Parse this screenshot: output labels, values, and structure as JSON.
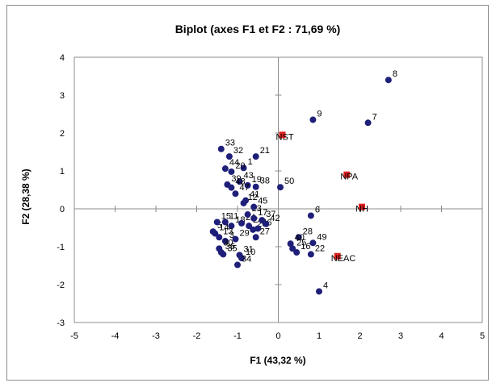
{
  "chart_data": {
    "type": "scatter",
    "title": "Biplot (axes F1 et F2 : 71,69 %)",
    "xlabel": "F1 (43,32 %)",
    "ylabel": "F2 (28,38 %)",
    "xlim": [
      -5,
      5
    ],
    "ylim": [
      -3,
      4
    ],
    "xticks": [
      -5,
      -4,
      -3,
      -2,
      -1,
      0,
      1,
      2,
      3,
      4,
      5
    ],
    "yticks": [
      -3,
      -2,
      -1,
      0,
      1,
      2,
      3,
      4
    ],
    "colors": {
      "observations": "#1f1f7a",
      "variables": "#e02020"
    },
    "variables": [
      {
        "label": "NST",
        "x": 0.1,
        "y": 1.95
      },
      {
        "label": "NPA",
        "x": 1.68,
        "y": 0.9
      },
      {
        "label": "NH",
        "x": 2.05,
        "y": 0.05
      },
      {
        "label": "NEAC",
        "x": 1.45,
        "y": -1.25
      }
    ],
    "observations": [
      {
        "label": "8",
        "x": 2.7,
        "y": 3.4
      },
      {
        "label": "7",
        "x": 2.2,
        "y": 2.27
      },
      {
        "label": "9",
        "x": 0.85,
        "y": 2.35
      },
      {
        "label": "50",
        "x": 0.05,
        "y": 0.57
      },
      {
        "label": "6",
        "x": 0.8,
        "y": -0.18
      },
      {
        "label": "4",
        "x": 1.0,
        "y": -2.18
      },
      {
        "label": "49",
        "x": 0.85,
        "y": -0.9
      },
      {
        "label": "22",
        "x": 0.8,
        "y": -1.2
      },
      {
        "label": "28",
        "x": 0.5,
        "y": -0.75
      },
      {
        "label": "40",
        "x": 0.3,
        "y": -0.92
      },
      {
        "label": "25",
        "x": 0.35,
        "y": -1.05
      },
      {
        "label": "16",
        "x": 0.45,
        "y": -1.15
      },
      {
        "label": "21",
        "x": -0.55,
        "y": 1.38
      },
      {
        "label": "33",
        "x": -1.4,
        "y": 1.58
      },
      {
        "label": "32",
        "x": -1.2,
        "y": 1.38
      },
      {
        "label": "1",
        "x": -0.85,
        "y": 1.08
      },
      {
        "label": "44",
        "x": -1.3,
        "y": 1.06
      },
      {
        "label": "20",
        "x": -1.15,
        "y": 0.98
      },
      {
        "label": "39",
        "x": -1.25,
        "y": 0.64
      },
      {
        "label": "43",
        "x": -0.95,
        "y": 0.72
      },
      {
        "label": "19",
        "x": -0.75,
        "y": 0.62
      },
      {
        "label": "38",
        "x": -0.55,
        "y": 0.58
      },
      {
        "label": "48",
        "x": -1.15,
        "y": 0.56
      },
      {
        "label": "47",
        "x": -1.05,
        "y": 0.4
      },
      {
        "label": "41",
        "x": -0.8,
        "y": 0.22
      },
      {
        "label": "12",
        "x": -0.85,
        "y": 0.15
      },
      {
        "label": "18",
        "x": -1.15,
        "y": -0.45
      },
      {
        "label": "24",
        "x": -0.9,
        "y": -0.38
      },
      {
        "label": "2",
        "x": -0.72,
        "y": -0.45
      },
      {
        "label": "26",
        "x": -0.62,
        "y": -0.55
      },
      {
        "label": "46",
        "x": -0.5,
        "y": -0.52
      },
      {
        "label": "27",
        "x": -0.55,
        "y": -0.75
      },
      {
        "label": "14",
        "x": -1.55,
        "y": -0.65
      },
      {
        "label": "13",
        "x": -1.45,
        "y": -0.75
      },
      {
        "label": "3",
        "x": -1.3,
        "y": -0.85
      },
      {
        "label": "29",
        "x": -1.05,
        "y": -0.8
      },
      {
        "label": "30",
        "x": -1.45,
        "y": -1.05
      },
      {
        "label": "36",
        "x": -1.4,
        "y": -1.15
      },
      {
        "label": "35",
        "x": -1.35,
        "y": -1.2
      },
      {
        "label": "31",
        "x": -0.95,
        "y": -1.22
      },
      {
        "label": "10",
        "x": -0.9,
        "y": -1.3
      },
      {
        "label": "34",
        "x": -1.0,
        "y": -1.48
      },
      {
        "label": "5",
        "x": -1.6,
        "y": -0.6
      },
      {
        "label": "11",
        "x": -1.3,
        "y": -0.35
      },
      {
        "label": "15",
        "x": -1.5,
        "y": -0.35
      },
      {
        "label": "17",
        "x": -0.6,
        "y": -0.25
      },
      {
        "label": "23",
        "x": -0.75,
        "y": -0.15
      },
      {
        "label": "37",
        "x": -0.4,
        "y": -0.3
      },
      {
        "label": "42",
        "x": -0.3,
        "y": -0.4
      },
      {
        "label": "45",
        "x": -0.6,
        "y": 0.05
      }
    ]
  }
}
